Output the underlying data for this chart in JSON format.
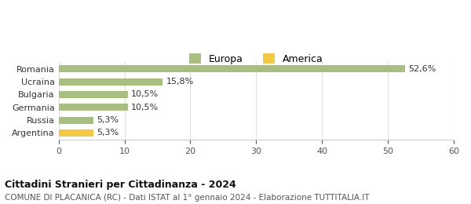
{
  "categories": [
    "Argentina",
    "Russia",
    "Germania",
    "Bulgaria",
    "Ucraina",
    "Romania"
  ],
  "values": [
    5.3,
    5.3,
    10.5,
    10.5,
    15.8,
    52.6
  ],
  "labels": [
    "5,3%",
    "5,3%",
    "10,5%",
    "10,5%",
    "15,8%",
    "52,6%"
  ],
  "bar_colors": [
    "#f5c842",
    "#a8bf7f",
    "#a8bf7f",
    "#a8bf7f",
    "#a8bf7f",
    "#a8bf7f"
  ],
  "europa_color": "#a8bf7f",
  "america_color": "#f5c842",
  "xlim": [
    0,
    60
  ],
  "xticks": [
    0,
    10,
    20,
    30,
    40,
    50,
    60
  ],
  "title_bold": "Cittadini Stranieri per Cittadinanza - 2024",
  "subtitle": "COMUNE DI PLACANICA (RC) - Dati ISTAT al 1° gennaio 2024 - Elaborazione TUTTITALIA.IT",
  "legend_europa": "Europa",
  "legend_america": "America",
  "bg_color": "#ffffff",
  "grid_color": "#dddddd",
  "bar_height": 0.55
}
